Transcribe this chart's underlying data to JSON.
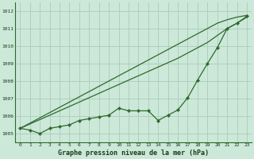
{
  "x": [
    0,
    1,
    2,
    3,
    4,
    5,
    6,
    7,
    8,
    9,
    10,
    11,
    12,
    13,
    14,
    15,
    16,
    17,
    18,
    19,
    20,
    21,
    22,
    23
  ],
  "line_smooth1": [
    1005.3,
    1005.6,
    1005.9,
    1006.2,
    1006.5,
    1006.8,
    1007.1,
    1007.4,
    1007.7,
    1008.0,
    1008.3,
    1008.6,
    1008.9,
    1009.2,
    1009.5,
    1009.8,
    1010.1,
    1010.4,
    1010.7,
    1011.0,
    1011.3,
    1011.5,
    1011.65,
    1011.75
  ],
  "line_smooth2": [
    1005.3,
    1005.55,
    1005.8,
    1006.05,
    1006.3,
    1006.55,
    1006.8,
    1007.05,
    1007.3,
    1007.55,
    1007.8,
    1008.05,
    1008.3,
    1008.55,
    1008.8,
    1009.05,
    1009.3,
    1009.6,
    1009.9,
    1010.2,
    1010.6,
    1011.0,
    1011.3,
    1011.65
  ],
  "line_markers": [
    1005.3,
    1005.2,
    1005.0,
    1005.3,
    1005.4,
    1005.5,
    1005.75,
    1005.85,
    1005.95,
    1006.05,
    1006.45,
    1006.3,
    1006.3,
    1006.3,
    1005.75,
    1006.05,
    1006.35,
    1007.05,
    1008.05,
    1009.0,
    1009.9,
    1011.0,
    1011.3,
    1011.7
  ],
  "ylim": [
    1004.5,
    1012.5
  ],
  "yticks": [
    1005,
    1006,
    1007,
    1008,
    1009,
    1010,
    1011,
    1012
  ],
  "xticks": [
    0,
    1,
    2,
    3,
    4,
    5,
    6,
    7,
    8,
    9,
    10,
    11,
    12,
    13,
    14,
    15,
    16,
    17,
    18,
    19,
    20,
    21,
    22,
    23
  ],
  "xlabel": "Graphe pression niveau de la mer (hPa)",
  "bg_color": "#cce8d8",
  "line_color": "#2d6a2d",
  "grid_color": "#aaccbb",
  "text_color": "#1a3a1a"
}
